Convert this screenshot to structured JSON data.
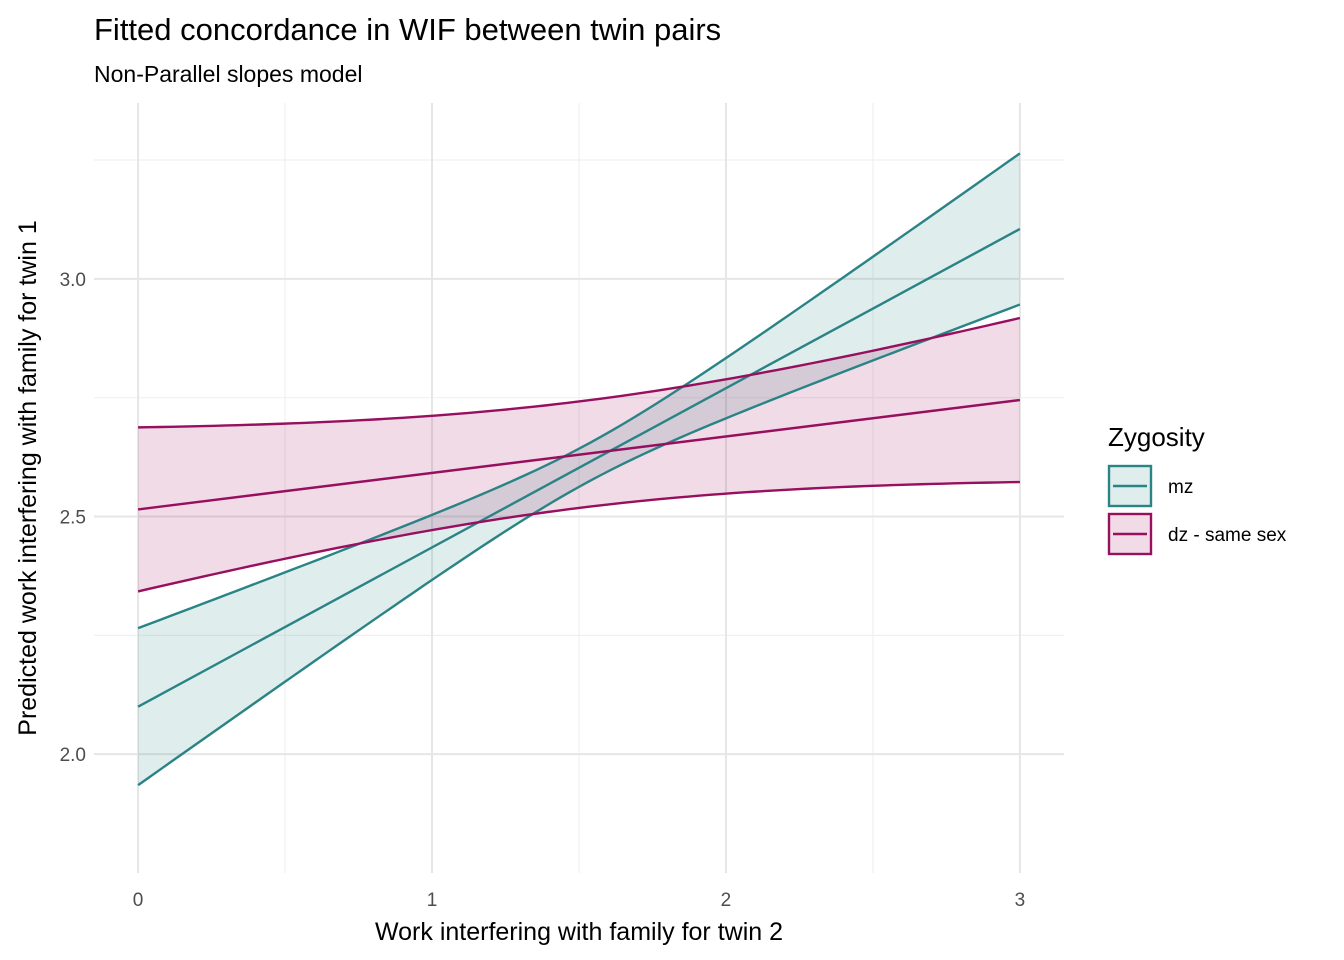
{
  "chart_data": {
    "type": "line",
    "title": "Fitted concordance in WIF between twin pairs",
    "subtitle": "Non-Parallel slopes model",
    "xlabel": "Work interfering with family for twin 2",
    "ylabel": "Predicted work interfering with family for twin 1",
    "xlim": [
      -0.15,
      3.15
    ],
    "ylim": [
      1.75,
      3.37
    ],
    "x_ticks": [
      0,
      1,
      2,
      3
    ],
    "x_tick_labels": [
      "0",
      "1",
      "2",
      "3"
    ],
    "y_ticks": [
      2.0,
      2.5,
      3.0
    ],
    "y_tick_labels": [
      "2.0",
      "2.5",
      "3.0"
    ],
    "legend": {
      "title": "Zygosity",
      "position": "right"
    },
    "series": [
      {
        "name": "mz",
        "color": "#2a8385",
        "fill": "#2a8385",
        "fit": {
          "intercept": 2.1,
          "slope": 0.335
        },
        "band": {
          "x_center": 1.53,
          "se_at_center": 0.04,
          "se_growth": 0.1047
        }
      },
      {
        "name": "dz - same sex",
        "color": "#970f5e",
        "fill": "#970f5e",
        "fit": {
          "intercept": 2.515,
          "slope": 0.0767
        },
        "band": {
          "x_center": 1.5,
          "se_at_center": 0.112,
          "se_growth": 0.0875
        }
      }
    ]
  }
}
